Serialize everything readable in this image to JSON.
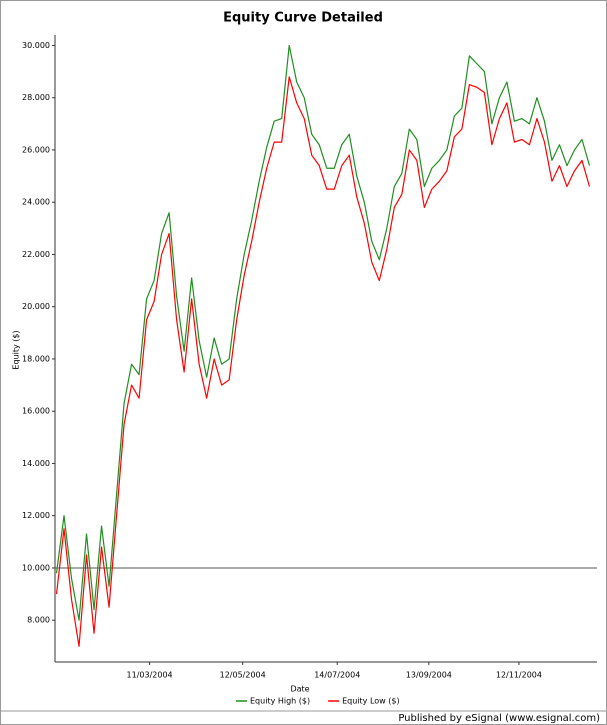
{
  "chart_data": {
    "type": "line",
    "title": "Equity Curve Detailed",
    "x_label": "Date",
    "y_label": "Equity ($)",
    "footer": "Published by eSignal (www.esignal.com)",
    "x": [
      "2004-01-09",
      "2004-01-14",
      "2004-01-19",
      "2004-01-24",
      "2004-01-29",
      "2004-02-03",
      "2004-02-08",
      "2004-02-13",
      "2004-02-18",
      "2004-02-23",
      "2004-02-28",
      "2004-03-04",
      "2004-03-09",
      "2004-03-14",
      "2004-03-19",
      "2004-03-24",
      "2004-03-29",
      "2004-04-03",
      "2004-04-08",
      "2004-04-13",
      "2004-04-18",
      "2004-04-23",
      "2004-04-28",
      "2004-05-03",
      "2004-05-08",
      "2004-05-13",
      "2004-05-18",
      "2004-05-23",
      "2004-05-28",
      "2004-06-02",
      "2004-06-07",
      "2004-06-12",
      "2004-06-17",
      "2004-06-22",
      "2004-06-27",
      "2004-07-02",
      "2004-07-07",
      "2004-07-12",
      "2004-07-17",
      "2004-07-22",
      "2004-07-27",
      "2004-08-01",
      "2004-08-06",
      "2004-08-11",
      "2004-08-16",
      "2004-08-21",
      "2004-08-26",
      "2004-08-31",
      "2004-09-05",
      "2004-09-10",
      "2004-09-15",
      "2004-09-20",
      "2004-09-25",
      "2004-09-30",
      "2004-10-05",
      "2004-10-10",
      "2004-10-15",
      "2004-10-20",
      "2004-10-25",
      "2004-10-30",
      "2004-11-04",
      "2004-11-09",
      "2004-11-14",
      "2004-11-19",
      "2004-11-24",
      "2004-11-29",
      "2004-12-04",
      "2004-12-09",
      "2004-12-14",
      "2004-12-19",
      "2004-12-24",
      "2004-12-29"
    ],
    "series": [
      {
        "name": "Equity High ($)",
        "color": "#1f8f1f",
        "values": [
          9800,
          12000,
          9600,
          8000,
          11300,
          8400,
          11600,
          9300,
          12800,
          16300,
          17800,
          17400,
          20300,
          21000,
          22800,
          23600,
          20400,
          18300,
          21100,
          18700,
          17300,
          18800,
          17800,
          18000,
          20300,
          22000,
          23300,
          24800,
          26100,
          27100,
          27200,
          30000,
          28600,
          28000,
          26600,
          26200,
          25300,
          25300,
          26200,
          26600,
          25000,
          24000,
          22500,
          21800,
          23000,
          24600,
          25100,
          26800,
          26400,
          24600,
          25300,
          25600,
          26000,
          27300,
          27600,
          29600,
          29300,
          29000,
          27000,
          28000,
          28600,
          27100,
          27200,
          27000,
          28000,
          27100,
          25600,
          26200,
          25400,
          26000,
          26400,
          25400
        ]
      },
      {
        "name": "Equity Low ($)",
        "color": "#ff0000",
        "values": [
          9000,
          11500,
          8800,
          7000,
          10500,
          7500,
          10800,
          8500,
          12000,
          15500,
          17000,
          16500,
          19500,
          20200,
          22000,
          22800,
          19500,
          17500,
          20300,
          17800,
          16500,
          18000,
          17000,
          17200,
          19500,
          21200,
          22500,
          24000,
          25300,
          26300,
          26300,
          28800,
          27800,
          27200,
          25800,
          25400,
          24500,
          24500,
          25400,
          25800,
          24200,
          23200,
          21700,
          21000,
          22200,
          23800,
          24300,
          26000,
          25600,
          23800,
          24500,
          24800,
          25200,
          26500,
          26800,
          28500,
          28400,
          28200,
          26200,
          27200,
          27800,
          26300,
          26400,
          26200,
          27200,
          26300,
          24800,
          25400,
          24600,
          25200,
          25600,
          24600
        ]
      }
    ],
    "reference_line": 10000,
    "xlim": [
      "2004-01-08",
      "2005-01-03"
    ],
    "xticks": [
      {
        "value": "2004-03-11",
        "label": "11/03/2004"
      },
      {
        "value": "2004-05-12",
        "label": "12/05/2004"
      },
      {
        "value": "2004-07-14",
        "label": "14/07/2004"
      },
      {
        "value": "2004-09-13",
        "label": "13/09/2004"
      },
      {
        "value": "2004-11-12",
        "label": "12/11/2004"
      }
    ],
    "ylim": [
      6400,
      30400
    ],
    "yticks": [
      {
        "value": 8000,
        "label": "8.000"
      },
      {
        "value": 10000,
        "label": "10.000"
      },
      {
        "value": 12000,
        "label": "12.000"
      },
      {
        "value": 14000,
        "label": "14.000"
      },
      {
        "value": 16000,
        "label": "16.000"
      },
      {
        "value": 18000,
        "label": "18.000"
      },
      {
        "value": 20000,
        "label": "20.000"
      },
      {
        "value": 22000,
        "label": "22.000"
      },
      {
        "value": 24000,
        "label": "24.000"
      },
      {
        "value": 26000,
        "label": "26.000"
      },
      {
        "value": 28000,
        "label": "28.000"
      },
      {
        "value": 30000,
        "label": "30.000"
      }
    ]
  }
}
